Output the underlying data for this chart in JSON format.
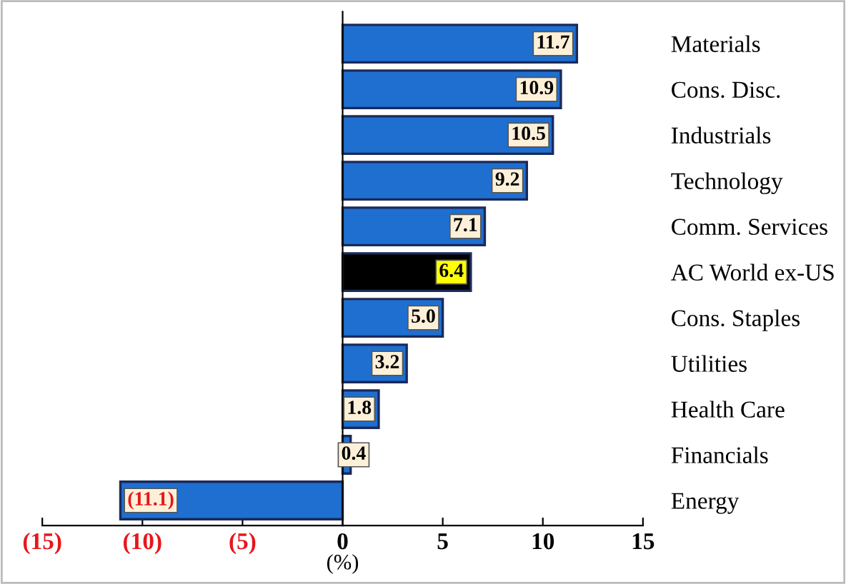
{
  "chart_data": {
    "type": "bar",
    "orientation": "horizontal",
    "xlabel": "(%)",
    "categories": [
      "Materials",
      "Cons. Disc.",
      "Industrials",
      "Technology",
      "Comm. Services",
      "AC World ex-US",
      "Cons. Staples",
      "Utilities",
      "Health Care",
      "Financials",
      "Energy"
    ],
    "values": [
      11.7,
      10.9,
      10.5,
      9.2,
      7.1,
      6.4,
      5.0,
      3.2,
      1.8,
      0.4,
      -11.1
    ],
    "value_labels": [
      "11.7",
      "10.9",
      "10.5",
      "9.2",
      "7.1",
      "6.4",
      "5.0",
      "3.2",
      "1.8",
      "0.4",
      "(11.1)"
    ],
    "colors": [
      "#1f6fd1",
      "#1f6fd1",
      "#1f6fd1",
      "#1f6fd1",
      "#1f6fd1",
      "#000000",
      "#1f6fd1",
      "#1f6fd1",
      "#1f6fd1",
      "#1f6fd1",
      "#1f6fd1"
    ],
    "xlim": [
      -15,
      15
    ],
    "xticks": [
      {
        "value": -15,
        "label": "(15)"
      },
      {
        "value": -10,
        "label": "(10)"
      },
      {
        "value": -5,
        "label": "(5)"
      },
      0,
      5,
      10,
      15
    ],
    "legend": false
  }
}
